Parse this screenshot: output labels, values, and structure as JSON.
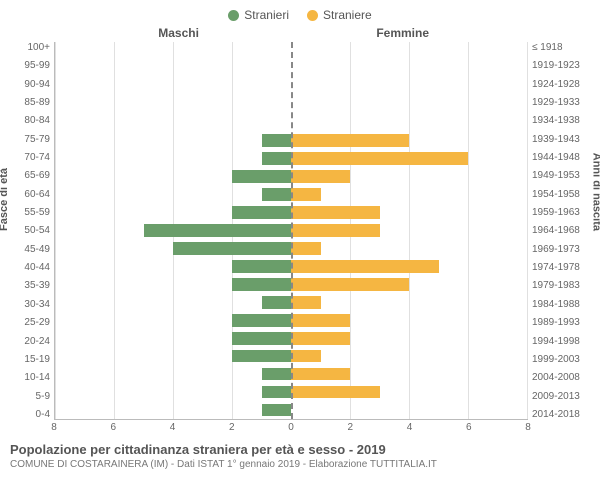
{
  "chart": {
    "type": "population-pyramid",
    "legend": [
      {
        "label": "Stranieri",
        "color": "#6a9e6a"
      },
      {
        "label": "Straniere",
        "color": "#f5b642"
      }
    ],
    "gender_labels": {
      "male": "Maschi",
      "female": "Femmine"
    },
    "y_title_left": "Fasce di età",
    "y_title_right": "Anni di nascita",
    "x_max": 8,
    "x_ticks": [
      8,
      6,
      4,
      2,
      0,
      2,
      4,
      6,
      8
    ],
    "x_tick_positions_pct": [
      0,
      12.5,
      25,
      37.5,
      50,
      62.5,
      75,
      87.5,
      100
    ],
    "grid_positions_pct": [
      0,
      12.5,
      25,
      37.5,
      62.5,
      75,
      87.5,
      100
    ],
    "grid_color": "#e0e0e0",
    "center_color": "#888888",
    "background_color": "#ffffff",
    "bar_color_male": "#6a9e6a",
    "bar_color_female": "#f5b642",
    "age_groups": [
      {
        "age": "100+",
        "birth": "≤ 1918",
        "m": 0,
        "f": 0
      },
      {
        "age": "95-99",
        "birth": "1919-1923",
        "m": 0,
        "f": 0
      },
      {
        "age": "90-94",
        "birth": "1924-1928",
        "m": 0,
        "f": 0
      },
      {
        "age": "85-89",
        "birth": "1929-1933",
        "m": 0,
        "f": 0
      },
      {
        "age": "80-84",
        "birth": "1934-1938",
        "m": 0,
        "f": 0
      },
      {
        "age": "75-79",
        "birth": "1939-1943",
        "m": 1,
        "f": 4
      },
      {
        "age": "70-74",
        "birth": "1944-1948",
        "m": 1,
        "f": 6
      },
      {
        "age": "65-69",
        "birth": "1949-1953",
        "m": 2,
        "f": 2
      },
      {
        "age": "60-64",
        "birth": "1954-1958",
        "m": 1,
        "f": 1
      },
      {
        "age": "55-59",
        "birth": "1959-1963",
        "m": 2,
        "f": 3
      },
      {
        "age": "50-54",
        "birth": "1964-1968",
        "m": 5,
        "f": 3
      },
      {
        "age": "45-49",
        "birth": "1969-1973",
        "m": 4,
        "f": 1
      },
      {
        "age": "40-44",
        "birth": "1974-1978",
        "m": 2,
        "f": 5
      },
      {
        "age": "35-39",
        "birth": "1979-1983",
        "m": 2,
        "f": 4
      },
      {
        "age": "30-34",
        "birth": "1984-1988",
        "m": 1,
        "f": 1
      },
      {
        "age": "25-29",
        "birth": "1989-1993",
        "m": 2,
        "f": 2
      },
      {
        "age": "20-24",
        "birth": "1994-1998",
        "m": 2,
        "f": 2
      },
      {
        "age": "15-19",
        "birth": "1999-2003",
        "m": 2,
        "f": 1
      },
      {
        "age": "10-14",
        "birth": "2004-2008",
        "m": 1,
        "f": 2
      },
      {
        "age": "5-9",
        "birth": "2009-2013",
        "m": 1,
        "f": 3
      },
      {
        "age": "0-4",
        "birth": "2014-2018",
        "m": 1,
        "f": 0
      }
    ],
    "title": "Popolazione per cittadinanza straniera per età e sesso - 2019",
    "subtitle": "COMUNE DI COSTARAINERA (IM) - Dati ISTAT 1° gennaio 2019 - Elaborazione TUTTITALIA.IT"
  }
}
